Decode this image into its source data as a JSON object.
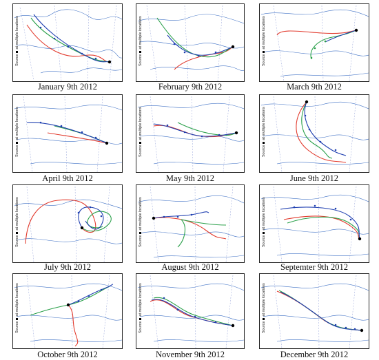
{
  "source_note": {
    "label": "Source",
    "text": "at multiple locations"
  },
  "colors": {
    "border": "#222222",
    "coast": "#3d6fc4",
    "grid": "#7a8ccf",
    "track_red": "#e23b2e",
    "track_green": "#2aa04a",
    "track_blue": "#1f3fb0",
    "source_marker": "#000000"
  },
  "panels": [
    {
      "caption": "January 9th 2012"
    },
    {
      "caption": "February 9th 2012"
    },
    {
      "caption": "March 9th 2012"
    },
    {
      "caption": "April 9th 2012"
    },
    {
      "caption": "May 9th 2012"
    },
    {
      "caption": "June 9th 2012"
    },
    {
      "caption": "July 9th 2012"
    },
    {
      "caption": "August 9th 2012"
    },
    {
      "caption": "Septemter 9th 2012"
    },
    {
      "caption": "October 9th 2012"
    },
    {
      "caption": "November 9th 2012"
    },
    {
      "caption": "December 9th 2012"
    }
  ]
}
